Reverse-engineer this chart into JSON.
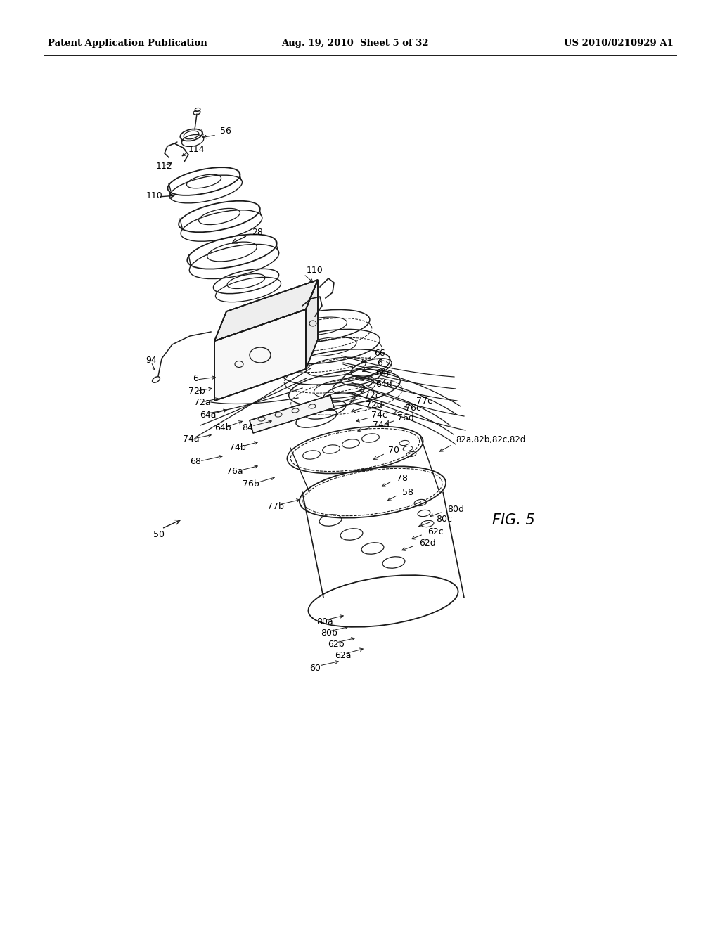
{
  "bg_color": "#ffffff",
  "header_left": "Patent Application Publication",
  "header_center": "Aug. 19, 2010  Sheet 5 of 32",
  "header_right": "US 2010/0210929 A1",
  "fig_label": "FIG. 5",
  "line_color": "#1a1a1a",
  "text_color": "#000000"
}
